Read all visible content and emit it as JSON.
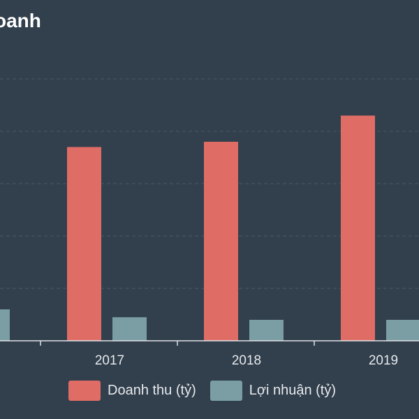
{
  "title": "oanh",
  "chart_data": {
    "type": "bar",
    "categories": [
      "",
      "2017",
      "2018",
      "2019"
    ],
    "series": [
      {
        "name": "Doanh thu (tỷ)",
        "color": "#e06c66",
        "values": [
          null,
          3.7,
          3.8,
          4.3
        ]
      },
      {
        "name": "Lợi nhuận (tỷ)",
        "color": "#7a9ea4",
        "values": [
          0.6,
          0.45,
          0.4,
          0.4
        ]
      }
    ],
    "ylim": [
      0,
      5
    ],
    "grid": true,
    "legend_position": "bottom"
  },
  "colors": {
    "background": "#323f4c",
    "gridline": "#4b5866",
    "axis": "#dfe4e8",
    "text": "#e6eaee"
  }
}
